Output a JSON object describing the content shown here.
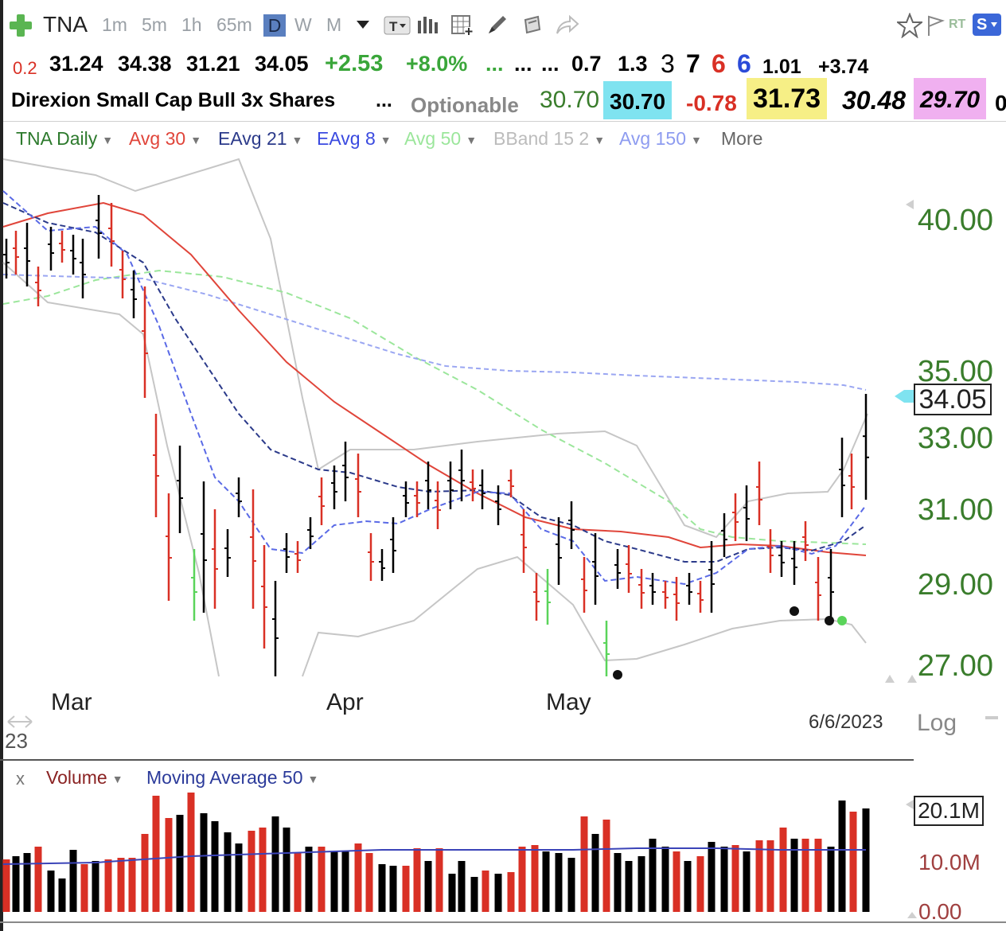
{
  "toolbar": {
    "symbol": "TNA",
    "intervals": [
      "1m",
      "5m",
      "1h",
      "65m",
      "D",
      "W",
      "M"
    ],
    "right_rt": "RT",
    "right_s": "S"
  },
  "quote": {
    "change_small": "0.2",
    "open": "31.24",
    "high": "34.38",
    "low": "31.21",
    "close": "34.05",
    "change": "+2.53",
    "change_pct": "+8.0%",
    "dots1": "...",
    "dots2": "...",
    "dots3": "...",
    "v1": "0.7",
    "v2": "1.3",
    "n1": "3",
    "n2": "7",
    "n3": "6",
    "n4": "6",
    "v3": "1.01",
    "v4": "+3.74"
  },
  "info": {
    "name": "Direxion Small Cap Bull 3x Shares",
    "dots": "...",
    "optionable": "Optionable",
    "price1": "30.70",
    "bid": "30.70",
    "chg": "-0.78",
    "hi_box": "31.73",
    "lo": "30.48",
    "pink": "29.70"
  },
  "legend": {
    "main": "TNA Daily",
    "avg30": "Avg 30",
    "eavg21": "EAvg 21",
    "eavg8": "EAvg 8",
    "avg50": "Avg 50",
    "bband": "BBand 15 2",
    "avg150": "Avg 150",
    "more": "More"
  },
  "price_axis": {
    "labels": [
      "40.00",
      "35.00",
      "33.00",
      "31.00",
      "29.00",
      "27.00"
    ],
    "current": "34.05",
    "log": "Log"
  },
  "months": [
    "Mar",
    "Apr",
    "May"
  ],
  "date_label": "6/6/2023",
  "corner_text": "23",
  "volume_panel": {
    "close_x": "x",
    "volume_label": "Volume",
    "ma_label": "Moving Average 50",
    "axis": [
      "20.1M",
      "10.0M",
      "0.00"
    ]
  },
  "colors": {
    "up": "#000000",
    "down": "#d93025",
    "avg30": "#e0453a",
    "eavg21": "#2b3a8a",
    "eavg8": "#5a6ae6",
    "avg50": "#9be69b",
    "avg150": "#9aa6f2",
    "bband": "#c6c6c6",
    "axis_text": "#3a7d2c",
    "cyan_box": "#7fe3f0",
    "yellow_box": "#f6ef86",
    "pink_box": "#f0b0f0"
  }
}
